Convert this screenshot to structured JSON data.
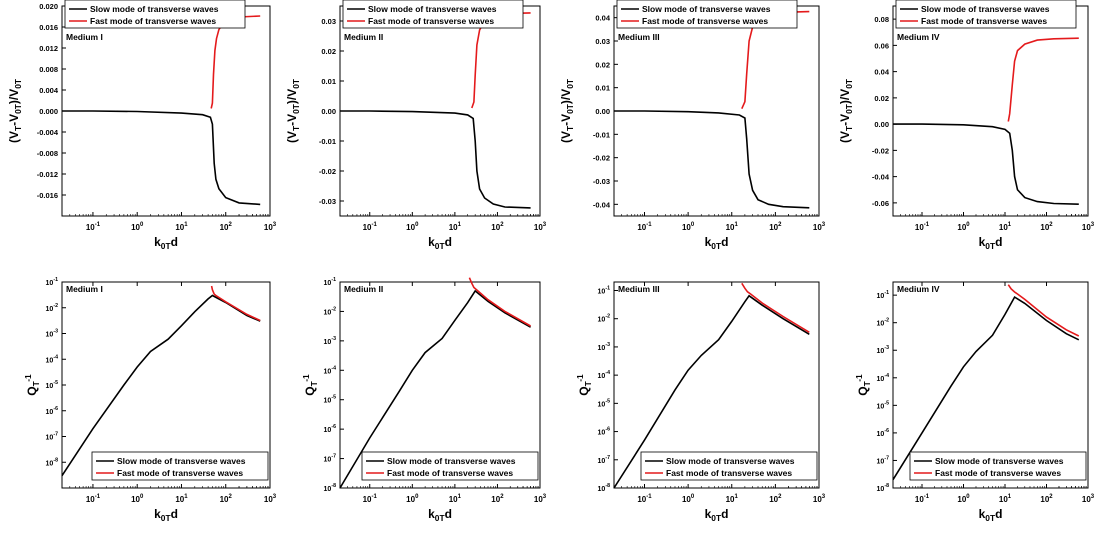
{
  "series_colors": {
    "slow": "#000000",
    "fast": "#e41a1c"
  },
  "legend": {
    "slow": "Slow mode of transverse waves",
    "fast": "Fast mode of transverse waves"
  },
  "chart_data": [
    {
      "type": "line",
      "row": "top",
      "panel": "Medium I",
      "ylabel": "(V_T-V_0T)/V_0T",
      "xlabel": "k_0T d",
      "xscale": "log",
      "xlim": [
        0.02,
        1000
      ],
      "xticks": [
        "10^-1",
        "10^0",
        "10^1",
        "10^2",
        "10^3"
      ],
      "ylim": [
        -0.02,
        0.02
      ],
      "yticks": [
        "0.020",
        "0.016",
        "0.012",
        "0.008",
        "0.004",
        "0.000",
        "-0.004",
        "-0.008",
        "-0.012",
        "-0.016"
      ],
      "legend_position": "top-left",
      "series": [
        {
          "name": "Slow mode of transverse waves",
          "x": [
            0.02,
            0.1,
            1,
            10,
            30,
            45,
            50,
            55,
            60,
            70,
            100,
            200,
            600
          ],
          "y": [
            0,
            0,
            -0.0001,
            -0.0004,
            -0.0007,
            -0.0012,
            -0.0025,
            -0.01,
            -0.013,
            -0.0148,
            -0.0165,
            -0.0175,
            -0.0178
          ]
        },
        {
          "name": "Fast mode of transverse waves",
          "x": [
            47,
            50,
            53,
            57,
            62,
            70,
            90,
            120,
            200,
            600
          ],
          "y": [
            0.0005,
            0.0015,
            0.007,
            0.0115,
            0.0138,
            0.0155,
            0.0168,
            0.0175,
            0.0179,
            0.0181
          ]
        }
      ]
    },
    {
      "type": "line",
      "row": "top",
      "panel": "Medium II",
      "ylabel": "(V_T-V_0T)/V_0T",
      "xlabel": "k_0T d",
      "xscale": "log",
      "xlim": [
        0.02,
        1000
      ],
      "xticks": [
        "10^-1",
        "10^0",
        "10^1",
        "10^2",
        "10^3"
      ],
      "ylim": [
        -0.035,
        0.035
      ],
      "yticks": [
        "0.03",
        "0.02",
        "0.01",
        "0.00",
        "-0.01",
        "-0.02",
        "-0.03"
      ],
      "legend_position": "top-left",
      "series": [
        {
          "name": "Slow mode of transverse waves",
          "x": [
            0.02,
            0.1,
            1,
            10,
            20,
            27,
            30,
            33,
            38,
            50,
            80,
            150,
            600
          ],
          "y": [
            0,
            0,
            -0.0002,
            -0.0007,
            -0.0013,
            -0.0025,
            -0.01,
            -0.02,
            -0.026,
            -0.029,
            -0.031,
            -0.032,
            -0.0323
          ]
        },
        {
          "name": "Fast mode of transverse waves",
          "x": [
            25,
            28,
            30,
            33,
            38,
            50,
            80,
            150,
            600
          ],
          "y": [
            0.001,
            0.003,
            0.012,
            0.022,
            0.027,
            0.03,
            0.0318,
            0.0325,
            0.0327
          ]
        }
      ]
    },
    {
      "type": "line",
      "row": "top",
      "panel": "Medium III",
      "ylabel": "(V_T-V_0T)/V_0T",
      "xlabel": "k_0T d",
      "xscale": "log",
      "xlim": [
        0.02,
        1000
      ],
      "xticks": [
        "10^-1",
        "10^0",
        "10^1",
        "10^2",
        "10^3"
      ],
      "ylim": [
        -0.045,
        0.045
      ],
      "yticks": [
        "0.04",
        "0.03",
        "0.02",
        "0.01",
        "0.00",
        "-0.01",
        "-0.02",
        "-0.03",
        "-0.04"
      ],
      "legend_position": "top-left",
      "series": [
        {
          "name": "Slow mode of transverse waves",
          "x": [
            0.02,
            0.1,
            1,
            5,
            15,
            20,
            22,
            25,
            30,
            40,
            70,
            150,
            600
          ],
          "y": [
            0,
            0,
            -0.0003,
            -0.0008,
            -0.0017,
            -0.003,
            -0.012,
            -0.027,
            -0.034,
            -0.038,
            -0.04,
            -0.041,
            -0.0415
          ]
        },
        {
          "name": "Fast mode of transverse waves",
          "x": [
            17,
            20,
            22,
            25,
            30,
            40,
            70,
            150,
            600
          ],
          "y": [
            0.001,
            0.004,
            0.016,
            0.03,
            0.036,
            0.039,
            0.0415,
            0.0423,
            0.0426
          ]
        }
      ]
    },
    {
      "type": "line",
      "row": "top",
      "panel": "Medium IV",
      "ylabel": "(V_T-V_0T)/V_0T",
      "xlabel": "k_0T d",
      "xscale": "log",
      "xlim": [
        0.02,
        1000
      ],
      "xticks": [
        "10^-1",
        "10^0",
        "10^1",
        "10^2",
        "10^3"
      ],
      "ylim": [
        -0.07,
        0.09
      ],
      "yticks": [
        "0.08",
        "0.06",
        "0.04",
        "0.02",
        "0.00",
        "-0.02",
        "-0.04",
        "-0.06"
      ],
      "legend_position": "top-left",
      "series": [
        {
          "name": "Slow mode of transverse waves",
          "x": [
            0.02,
            0.1,
            1,
            5,
            10,
            13,
            15,
            17,
            20,
            30,
            60,
            150,
            600
          ],
          "y": [
            0,
            0,
            -0.0005,
            -0.002,
            -0.004,
            -0.007,
            -0.02,
            -0.04,
            -0.05,
            -0.056,
            -0.059,
            -0.0605,
            -0.061
          ]
        },
        {
          "name": "Fast mode of transverse waves",
          "x": [
            12,
            13,
            15,
            17,
            20,
            30,
            60,
            150,
            600
          ],
          "y": [
            0.002,
            0.008,
            0.03,
            0.048,
            0.056,
            0.061,
            0.064,
            0.065,
            0.0655
          ]
        }
      ]
    },
    {
      "type": "line",
      "row": "bottom",
      "panel": "Medium I",
      "ylabel": "Q_T^-1",
      "xlabel": "k_0T d",
      "xscale": "log",
      "yscale": "log",
      "xlim": [
        0.02,
        1000
      ],
      "ylim": [
        1e-09,
        0.1
      ],
      "xticks": [
        "10^-1",
        "10^0",
        "10^1",
        "10^2",
        "10^3"
      ],
      "yticks": [
        "10^-1",
        "10^-2",
        "10^-3",
        "10^-4",
        "10^-5",
        "10^-6",
        "10^-7",
        "10^-8"
      ],
      "legend_position": "bottom-right",
      "series": [
        {
          "name": "Slow mode of transverse waves",
          "x": [
            0.02,
            0.1,
            0.5,
            1,
            2,
            5,
            10,
            20,
            40,
            50,
            100,
            300,
            600
          ],
          "y": [
            3e-09,
            2e-07,
            1e-05,
            5e-05,
            0.0002,
            0.0006,
            0.002,
            0.007,
            0.022,
            0.03,
            0.016,
            0.005,
            0.003
          ]
        },
        {
          "name": "Fast mode of transverse waves",
          "x": [
            48,
            50,
            55,
            60,
            100,
            300,
            600
          ],
          "y": [
            0.07,
            0.05,
            0.034,
            0.03,
            0.017,
            0.0055,
            0.0032
          ]
        }
      ]
    },
    {
      "type": "line",
      "row": "bottom",
      "panel": "Medium II",
      "ylabel": "Q_T^-1",
      "xlabel": "k_0T d",
      "xscale": "log",
      "yscale": "log",
      "xlim": [
        0.02,
        1000
      ],
      "ylim": [
        1e-08,
        0.1
      ],
      "xticks": [
        "10^-1",
        "10^0",
        "10^1",
        "10^2",
        "10^3"
      ],
      "yticks": [
        "10^-1",
        "10^-2",
        "10^-3",
        "10^-4",
        "10^-5",
        "10^-6",
        "10^-7",
        "10^-8"
      ],
      "legend_position": "bottom-right",
      "series": [
        {
          "name": "Slow mode of transverse waves",
          "x": [
            0.02,
            0.1,
            0.5,
            1,
            2,
            5,
            10,
            20,
            30,
            60,
            150,
            600
          ],
          "y": [
            1e-08,
            5e-07,
            2e-05,
            0.0001,
            0.0004,
            0.0012,
            0.005,
            0.02,
            0.05,
            0.022,
            0.009,
            0.0029
          ]
        },
        {
          "name": "Fast mode of transverse waves",
          "x": [
            22,
            25,
            28,
            32,
            60,
            150,
            600
          ],
          "y": [
            0.14,
            0.09,
            0.065,
            0.055,
            0.025,
            0.01,
            0.0032
          ]
        }
      ]
    },
    {
      "type": "line",
      "row": "bottom",
      "panel": "Medium III",
      "ylabel": "Q_T^-1",
      "xlabel": "k_0T d",
      "xscale": "log",
      "yscale": "log",
      "xlim": [
        0.02,
        1000
      ],
      "ylim": [
        1e-08,
        0.2
      ],
      "xticks": [
        "10^-1",
        "10^0",
        "10^1",
        "10^2",
        "10^3"
      ],
      "yticks": [
        "10^-1",
        "10^-2",
        "10^-3",
        "10^-4",
        "10^-5",
        "10^-6",
        "10^-7",
        "10^-8"
      ],
      "legend_position": "bottom-right",
      "series": [
        {
          "name": "Slow mode of transverse waves",
          "x": [
            0.02,
            0.1,
            0.5,
            1,
            2,
            5,
            10,
            20,
            25,
            50,
            150,
            600
          ],
          "y": [
            1e-08,
            5e-07,
            3e-05,
            0.00015,
            0.0005,
            0.0018,
            0.008,
            0.04,
            0.065,
            0.03,
            0.01,
            0.0028
          ]
        },
        {
          "name": "Fast mode of transverse waves",
          "x": [
            17,
            20,
            23,
            27,
            50,
            150,
            600
          ],
          "y": [
            0.18,
            0.12,
            0.09,
            0.075,
            0.036,
            0.012,
            0.0033
          ]
        }
      ]
    },
    {
      "type": "line",
      "row": "bottom",
      "panel": "Medium IV",
      "ylabel": "Q_T^-1",
      "xlabel": "k_0T d",
      "xscale": "log",
      "yscale": "log",
      "xlim": [
        0.02,
        1000
      ],
      "ylim": [
        1e-08,
        0.3
      ],
      "xticks": [
        "10^-1",
        "10^0",
        "10^1",
        "10^2",
        "10^3"
      ],
      "yticks": [
        "10^-1",
        "10^-2",
        "10^-3",
        "10^-4",
        "10^-5",
        "10^-6",
        "10^-7",
        "10^-8"
      ],
      "legend_position": "bottom-right",
      "series": [
        {
          "name": "Slow mode of transverse waves",
          "x": [
            0.02,
            0.1,
            0.5,
            1,
            2,
            5,
            10,
            17,
            30,
            100,
            300,
            600
          ],
          "y": [
            2e-08,
            1e-06,
            5e-05,
            0.00025,
            0.0009,
            0.0035,
            0.02,
            0.085,
            0.05,
            0.012,
            0.004,
            0.0024
          ]
        },
        {
          "name": "Fast mode of transverse waves",
          "x": [
            12,
            14,
            17,
            20,
            30,
            100,
            300,
            600
          ],
          "y": [
            0.24,
            0.17,
            0.13,
            0.11,
            0.07,
            0.016,
            0.0055,
            0.0033
          ]
        }
      ]
    }
  ]
}
